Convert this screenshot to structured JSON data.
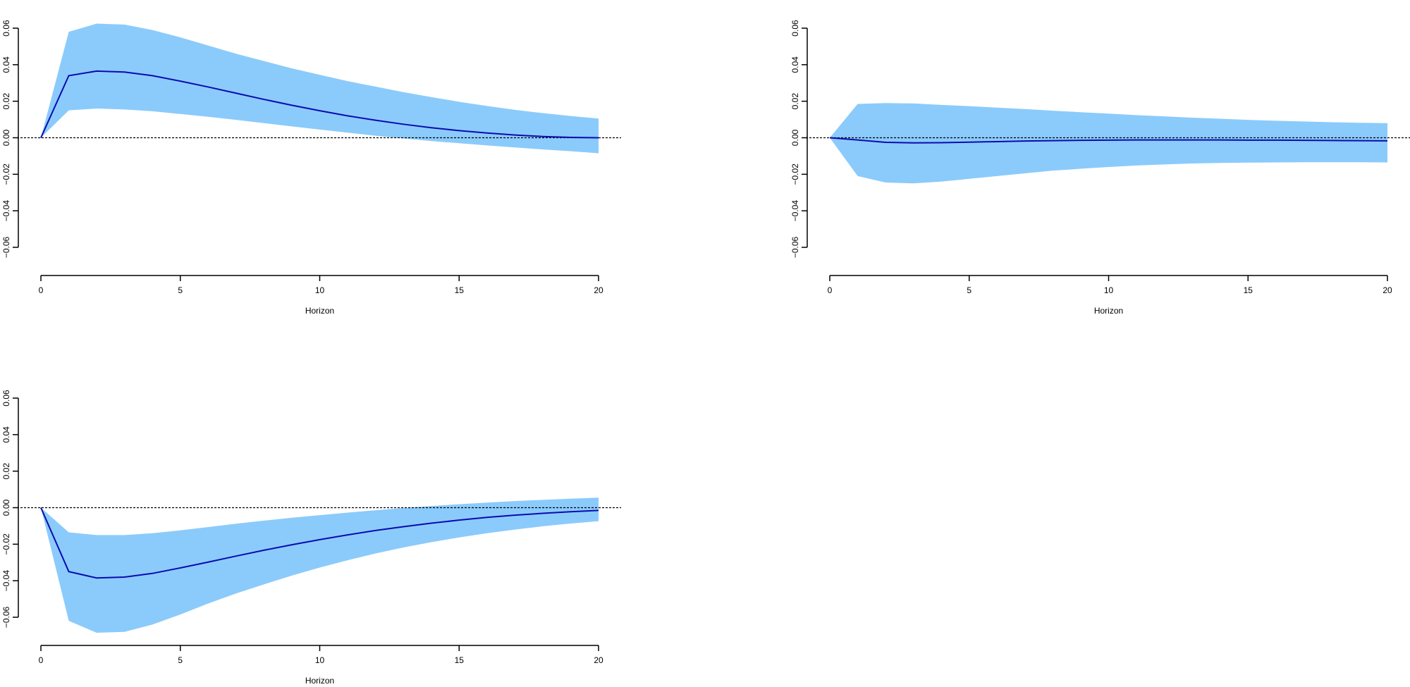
{
  "colors": {
    "band": "#8bcbfb",
    "line": "#0b0bb0",
    "axis": "#000000",
    "zero_line": "#000000"
  },
  "chart_data": [
    {
      "type": "area",
      "panel": "top-left",
      "xlabel": "Horizon",
      "ylabel": "",
      "xlim": [
        0,
        20
      ],
      "ylim": [
        -0.06,
        0.06
      ],
      "x_ticks": [
        "0",
        "5",
        "10",
        "15",
        "20"
      ],
      "y_ticks": [
        "-0.06",
        "-0.04",
        "-0.02",
        "0.00",
        "0.02",
        "0.04",
        "0.06"
      ],
      "grid": false,
      "zero_line": true,
      "x": [
        0,
        1,
        2,
        3,
        4,
        5,
        6,
        7,
        8,
        9,
        10,
        11,
        12,
        13,
        14,
        15,
        16,
        17,
        18,
        19,
        20
      ],
      "series": [
        {
          "role": "median",
          "values": [
            0,
            0.034,
            0.0365,
            0.036,
            0.034,
            0.031,
            0.0278,
            0.0244,
            0.021,
            0.0178,
            0.0148,
            0.012,
            0.0096,
            0.0074,
            0.0055,
            0.0039,
            0.0026,
            0.0015,
            0.0007,
            0.0002,
            0
          ]
        },
        {
          "role": "upper",
          "values": [
            0,
            0.058,
            0.0625,
            0.062,
            0.059,
            0.055,
            0.0505,
            0.046,
            0.042,
            0.038,
            0.0345,
            0.031,
            0.028,
            0.025,
            0.0223,
            0.0197,
            0.0174,
            0.0153,
            0.0135,
            0.0119,
            0.0105
          ]
        },
        {
          "role": "lower",
          "values": [
            0,
            0.015,
            0.016,
            0.0155,
            0.0145,
            0.013,
            0.0115,
            0.0098,
            0.008,
            0.0062,
            0.0045,
            0.0028,
            0.0011,
            -0.0004,
            -0.0018,
            -0.003,
            -0.0042,
            -0.0053,
            -0.0064,
            -0.0074,
            -0.0085
          ]
        }
      ]
    },
    {
      "type": "area",
      "panel": "top-right",
      "xlabel": "Horizon",
      "ylabel": "",
      "xlim": [
        0,
        20
      ],
      "ylim": [
        -0.06,
        0.06
      ],
      "x_ticks": [
        "0",
        "5",
        "10",
        "15",
        "20"
      ],
      "y_ticks": [
        "-0.06",
        "-0.04",
        "-0.02",
        "0.00",
        "0.02",
        "0.04",
        "0.06"
      ],
      "grid": false,
      "zero_line": true,
      "x": [
        0,
        1,
        2,
        3,
        4,
        5,
        6,
        7,
        8,
        9,
        10,
        11,
        12,
        13,
        14,
        15,
        16,
        17,
        18,
        19,
        20
      ],
      "series": [
        {
          "role": "median",
          "values": [
            0,
            -0.0012,
            -0.0025,
            -0.0028,
            -0.0027,
            -0.0024,
            -0.0021,
            -0.0018,
            -0.0016,
            -0.0014,
            -0.0013,
            -0.0012,
            -0.0012,
            -0.0012,
            -0.0012,
            -0.0013,
            -0.0013,
            -0.0014,
            -0.0015,
            -0.0016,
            -0.0017
          ]
        },
        {
          "role": "upper",
          "values": [
            0,
            0.0185,
            0.019,
            0.0188,
            0.018,
            0.0173,
            0.0165,
            0.0157,
            0.0148,
            0.014,
            0.0132,
            0.0124,
            0.0117,
            0.011,
            0.0104,
            0.0098,
            0.0093,
            0.0089,
            0.0085,
            0.0082,
            0.008
          ]
        },
        {
          "role": "lower",
          "values": [
            0,
            -0.021,
            -0.0245,
            -0.025,
            -0.024,
            -0.0225,
            -0.021,
            -0.0195,
            -0.018,
            -0.017,
            -0.016,
            -0.0152,
            -0.0146,
            -0.0141,
            -0.0138,
            -0.0136,
            -0.0135,
            -0.0134,
            -0.0134,
            -0.0134,
            -0.0135
          ]
        }
      ]
    },
    {
      "type": "area",
      "panel": "bottom-left",
      "xlabel": "Horizon",
      "ylabel": "",
      "xlim": [
        0,
        20
      ],
      "ylim": [
        -0.06,
        0.06
      ],
      "x_ticks": [
        "0",
        "5",
        "10",
        "15",
        "20"
      ],
      "y_ticks": [
        "-0.06",
        "-0.04",
        "-0.02",
        "0.00",
        "0.02",
        "0.04",
        "0.06"
      ],
      "grid": false,
      "zero_line": true,
      "x": [
        0,
        1,
        2,
        3,
        4,
        5,
        6,
        7,
        8,
        9,
        10,
        11,
        12,
        13,
        14,
        15,
        16,
        17,
        18,
        19,
        20
      ],
      "series": [
        {
          "role": "median",
          "values": [
            0,
            -0.035,
            -0.0385,
            -0.038,
            -0.036,
            -0.033,
            -0.0298,
            -0.0265,
            -0.0233,
            -0.0203,
            -0.0175,
            -0.0149,
            -0.0125,
            -0.0104,
            -0.0085,
            -0.0068,
            -0.0053,
            -0.0041,
            -0.0031,
            -0.0022,
            -0.0015
          ]
        },
        {
          "role": "upper",
          "values": [
            0,
            -0.0135,
            -0.015,
            -0.015,
            -0.014,
            -0.0124,
            -0.0106,
            -0.0088,
            -0.0071,
            -0.0055,
            -0.0041,
            -0.0027,
            -0.0014,
            -0.0002,
            0.0009,
            0.0019,
            0.0028,
            0.0036,
            0.0043,
            0.0049,
            0.0055
          ]
        },
        {
          "role": "lower",
          "values": [
            0,
            -0.062,
            -0.0685,
            -0.068,
            -0.064,
            -0.0585,
            -0.0525,
            -0.047,
            -0.042,
            -0.0372,
            -0.0328,
            -0.0288,
            -0.0251,
            -0.0218,
            -0.0189,
            -0.0163,
            -0.014,
            -0.012,
            -0.0102,
            -0.0087,
            -0.0074
          ]
        }
      ]
    }
  ]
}
